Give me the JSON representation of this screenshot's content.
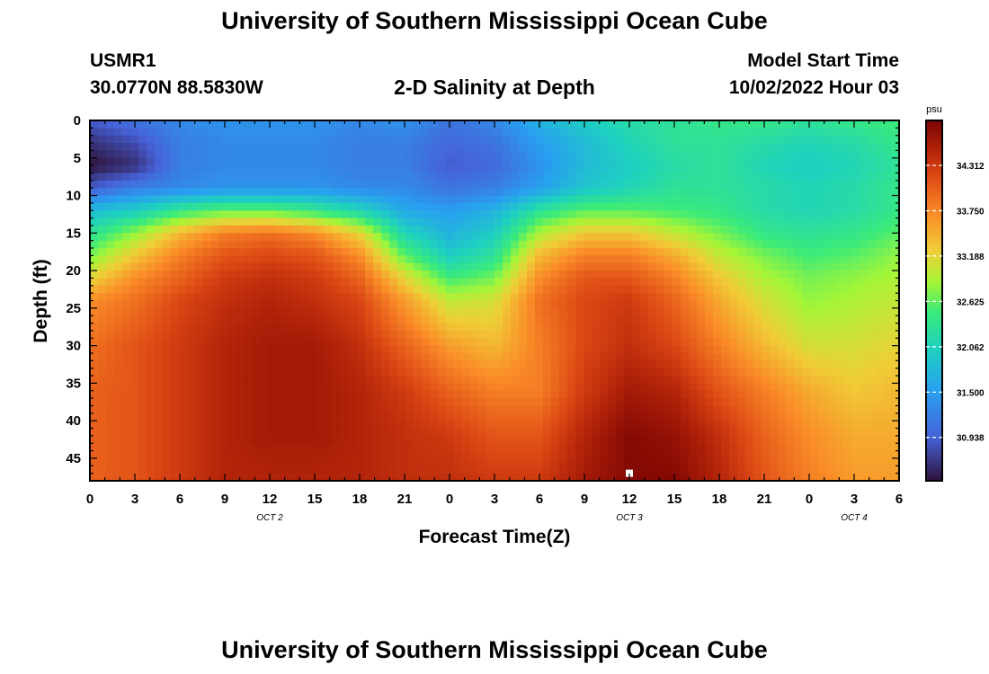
{
  "header": {
    "title": "University of Southern Mississippi Ocean Cube",
    "station_id": "USMR1",
    "location": "30.0770N  88.5830W",
    "plot_title": "2-D Salinity at Depth",
    "model_start_label": "Model Start Time",
    "model_start_value": "10/02/2022 Hour 03"
  },
  "footer": {
    "title": "University of Southern Mississippi Ocean Cube"
  },
  "chart_data": {
    "type": "heatmap",
    "title": "2-D Salinity at Depth",
    "xlabel": "Forecast Time(Z)",
    "ylabel": "Depth (ft)",
    "x_ticks": [
      "0",
      "3",
      "6",
      "9",
      "12",
      "15",
      "18",
      "21",
      "0",
      "3",
      "6",
      "9",
      "12",
      "15",
      "18",
      "21",
      "0",
      "3",
      "6"
    ],
    "x_tick_hours": [
      0,
      3,
      6,
      9,
      12,
      15,
      18,
      21,
      24,
      27,
      30,
      33,
      36,
      39,
      42,
      45,
      48,
      51,
      54
    ],
    "xlim": [
      0,
      54
    ],
    "date_labels": [
      {
        "label": "OCT 2",
        "hour": 12
      },
      {
        "label": "OCT 3",
        "hour": 36
      },
      {
        "label": "OCT 4",
        "hour": 51
      }
    ],
    "y_ticks": [
      0,
      5,
      10,
      15,
      20,
      25,
      30,
      35,
      40,
      45
    ],
    "ylim": [
      0,
      48
    ],
    "y_inverted": true,
    "colorbar": {
      "unit": "psu",
      "min": 30.4,
      "max": 34.87,
      "tick_values": [
        30.938,
        31.5,
        32.062,
        32.625,
        33.188,
        33.75,
        34.312
      ],
      "tick_labels": [
        "30.938",
        "31.500",
        "32.062",
        "32.625",
        "33.188",
        "33.750",
        "34.312"
      ]
    },
    "marker": {
      "hour": 36,
      "depth": 47,
      "color": "#ffffff"
    },
    "depth_levels": [
      0,
      3,
      6,
      9,
      12,
      15,
      18,
      21,
      24,
      30,
      36,
      42,
      48
    ],
    "hours": [
      0,
      3,
      6,
      9,
      12,
      15,
      18,
      21,
      24,
      27,
      30,
      33,
      36,
      39,
      42,
      45,
      48,
      51,
      54
    ],
    "salinity": [
      [
        30.9,
        31.1,
        31.3,
        31.4,
        31.4,
        31.4,
        31.3,
        31.4,
        31.1,
        31.3,
        31.7,
        32.0,
        32.2,
        32.3,
        32.4,
        32.4,
        32.3,
        32.4,
        32.5
      ],
      [
        30.6,
        30.8,
        31.2,
        31.3,
        31.3,
        31.3,
        31.2,
        31.2,
        31.0,
        31.1,
        31.5,
        31.8,
        32.1,
        32.3,
        32.3,
        32.2,
        32.1,
        32.2,
        32.4
      ],
      [
        30.4,
        30.6,
        31.2,
        31.3,
        31.3,
        31.3,
        31.2,
        31.2,
        30.9,
        31.0,
        31.4,
        31.8,
        32.0,
        32.2,
        32.3,
        32.1,
        32.0,
        32.1,
        32.3
      ],
      [
        30.9,
        31.2,
        31.3,
        31.4,
        31.4,
        31.4,
        31.3,
        31.3,
        31.1,
        31.2,
        31.5,
        31.9,
        32.1,
        32.3,
        32.3,
        32.2,
        32.1,
        32.2,
        32.4
      ],
      [
        31.8,
        32.0,
        32.4,
        32.6,
        32.6,
        32.4,
        32.1,
        31.6,
        31.5,
        31.7,
        32.3,
        32.6,
        32.6,
        32.5,
        32.4,
        32.2,
        32.1,
        32.2,
        32.4
      ],
      [
        32.3,
        32.8,
        33.4,
        33.8,
        33.9,
        33.7,
        33.2,
        32.1,
        31.7,
        32.0,
        32.9,
        33.3,
        33.3,
        33.0,
        32.7,
        32.4,
        32.3,
        32.4,
        32.6
      ],
      [
        32.7,
        33.3,
        33.8,
        34.1,
        34.2,
        34.1,
        33.7,
        32.6,
        32.0,
        32.3,
        33.4,
        33.8,
        33.8,
        33.5,
        33.0,
        32.7,
        32.5,
        32.6,
        32.8
      ],
      [
        33.2,
        33.7,
        34.0,
        34.3,
        34.4,
        34.3,
        34.0,
        33.2,
        32.5,
        32.7,
        33.7,
        34.1,
        34.1,
        33.8,
        33.3,
        32.9,
        32.7,
        32.8,
        32.9
      ],
      [
        33.7,
        33.9,
        34.2,
        34.4,
        34.5,
        34.4,
        34.2,
        33.6,
        33.0,
        33.1,
        33.9,
        34.2,
        34.3,
        34.0,
        33.5,
        33.1,
        32.8,
        32.9,
        33.0
      ],
      [
        33.9,
        34.1,
        34.3,
        34.5,
        34.6,
        34.6,
        34.4,
        34.0,
        33.6,
        33.4,
        33.8,
        34.2,
        34.4,
        34.2,
        33.8,
        33.4,
        33.1,
        33.1,
        33.2
      ],
      [
        34.0,
        34.1,
        34.3,
        34.5,
        34.6,
        34.6,
        34.5,
        34.3,
        34.0,
        33.8,
        33.8,
        34.3,
        34.6,
        34.5,
        34.1,
        33.8,
        33.5,
        33.3,
        33.4
      ],
      [
        34.0,
        34.1,
        34.3,
        34.5,
        34.6,
        34.6,
        34.5,
        34.4,
        34.3,
        34.1,
        34.1,
        34.5,
        34.8,
        34.7,
        34.4,
        34.0,
        33.7,
        33.5,
        33.5
      ],
      [
        34.0,
        34.1,
        34.3,
        34.5,
        34.5,
        34.5,
        34.5,
        34.4,
        34.4,
        34.3,
        34.3,
        34.6,
        34.8,
        34.8,
        34.5,
        34.1,
        33.8,
        33.6,
        33.6
      ]
    ]
  }
}
